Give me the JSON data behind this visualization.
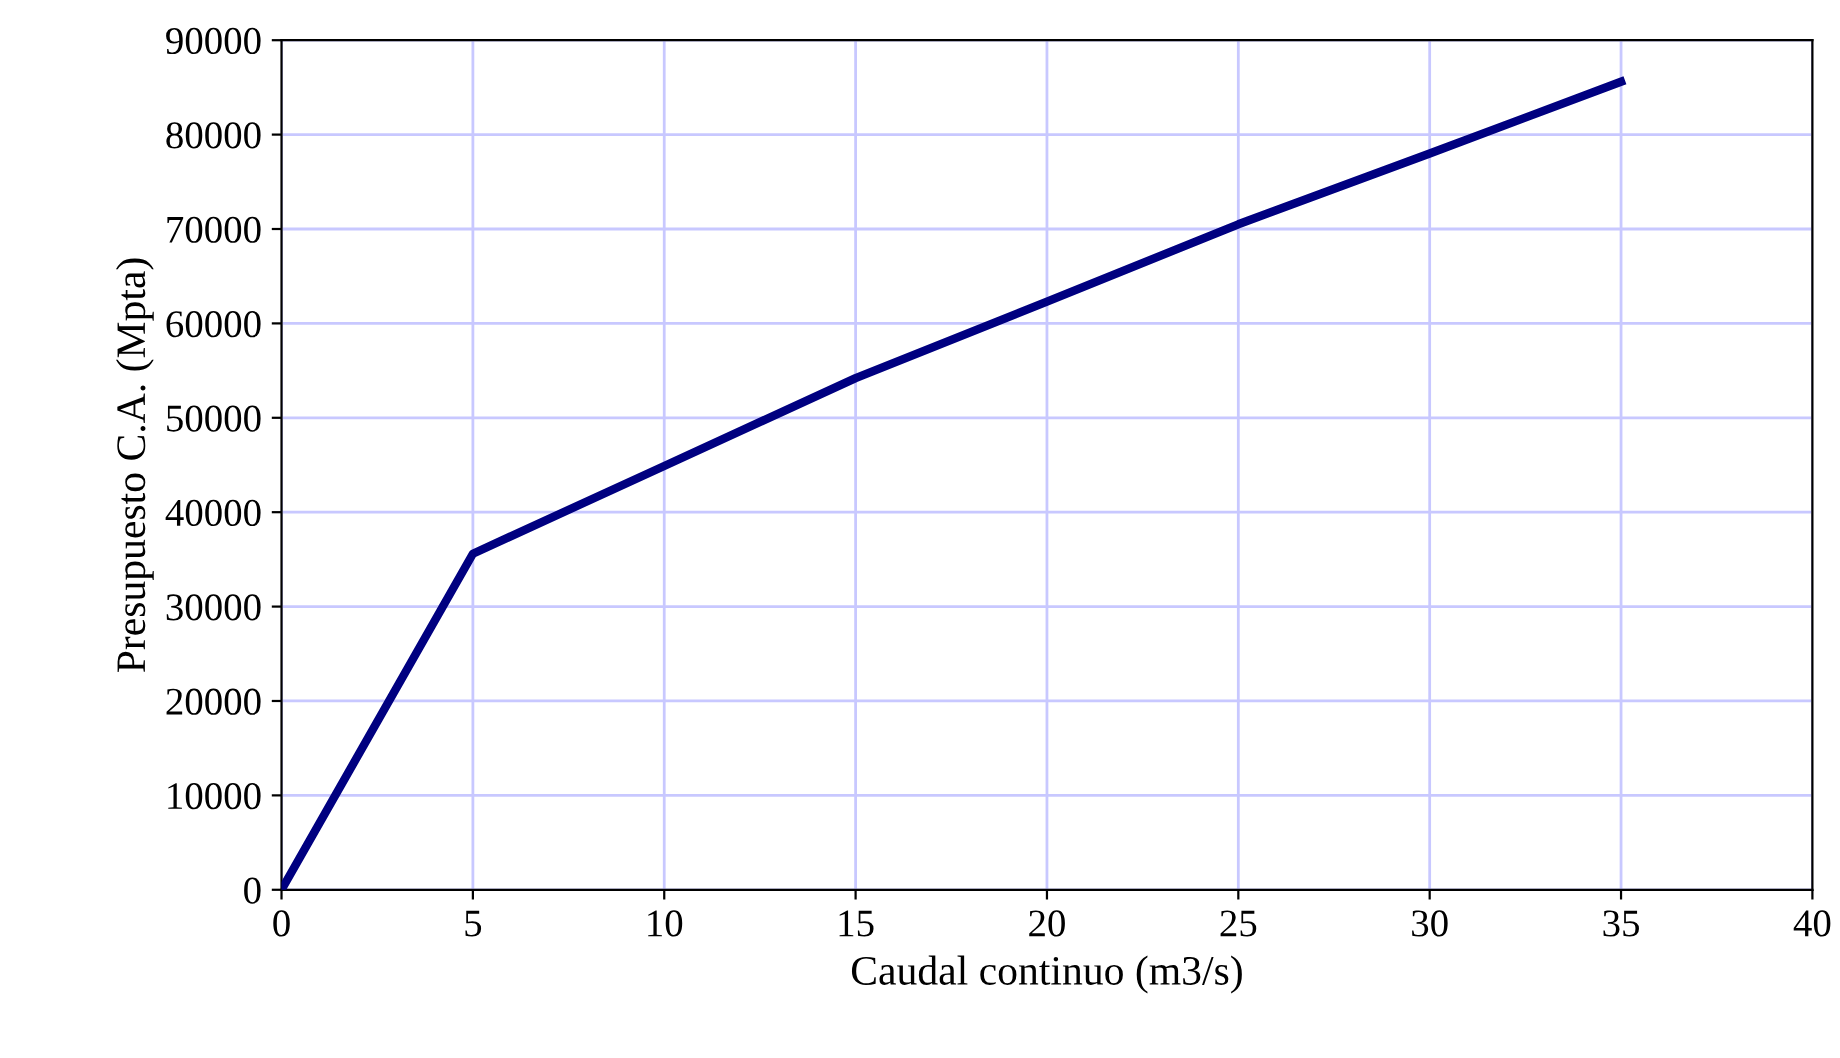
{
  "chart_data": {
    "type": "line",
    "xlabel": "Caudal continuo (m3/s)",
    "ylabel": "Presupuesto C.A. (Mpta)",
    "x": [
      0,
      5,
      10,
      15,
      20,
      25,
      30,
      35
    ],
    "series": [
      {
        "color": "#000080",
        "values": [
          0,
          35600,
          44900,
          54200,
          62300,
          70500,
          78000,
          85600
        ]
      }
    ],
    "xlim": [
      0,
      40
    ],
    "xticks": [
      0,
      5,
      10,
      15,
      20,
      25,
      30,
      35,
      40
    ],
    "ylim": [
      0,
      90000
    ],
    "yticks": [
      0,
      10000,
      20000,
      30000,
      40000,
      50000,
      60000,
      70000,
      80000,
      90000
    ],
    "grid": true,
    "marker": "none",
    "line_style": "solid"
  }
}
